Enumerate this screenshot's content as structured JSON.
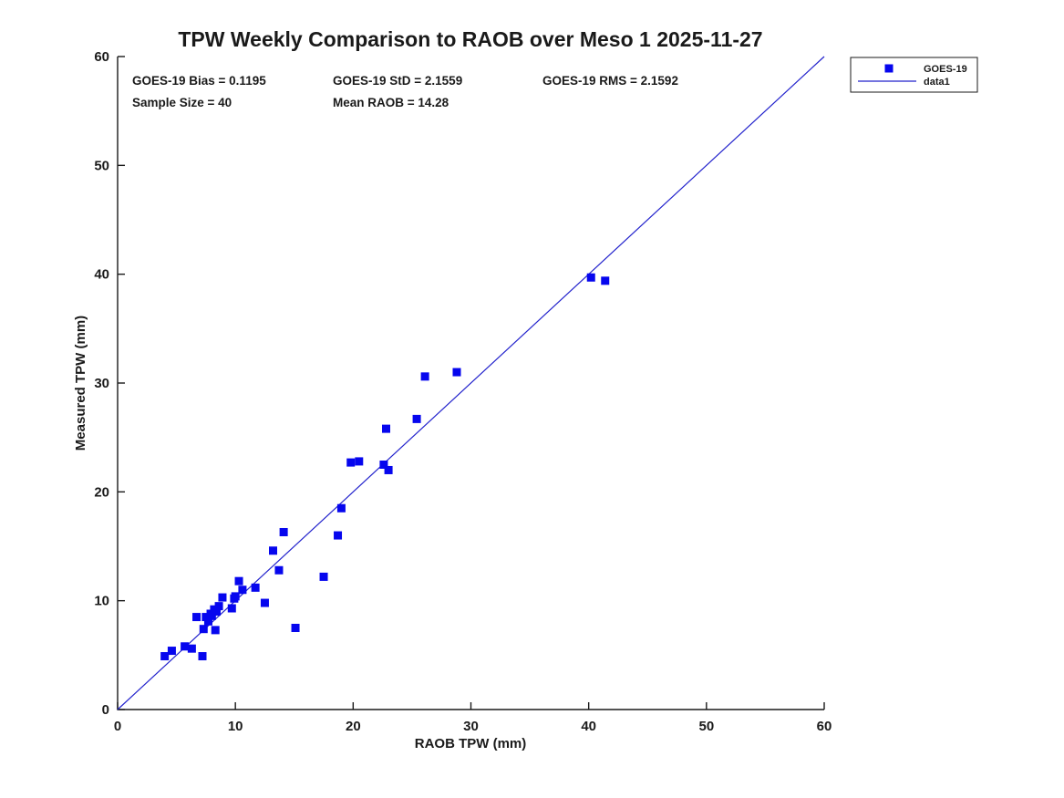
{
  "title": "TPW Weekly Comparison to RAOB over Meso 1 2025-11-27",
  "annotations": {
    "bias": "GOES-19 Bias = 0.1195",
    "std": "GOES-19 StD = 2.1559",
    "rms": "GOES-19 RMS = 2.1592",
    "sample_size": "Sample Size = 40",
    "mean_raob": "Mean RAOB = 14.28"
  },
  "legend": {
    "position": "top-right-outside",
    "items": [
      {
        "label": "GOES-19",
        "swatch": "square-marker"
      },
      {
        "label": "data1",
        "swatch": "line"
      }
    ]
  },
  "colors": {
    "marker": "#0606ee",
    "line": "#2222cc",
    "axis": "#1a1a1a",
    "background": "#ffffff"
  },
  "chart_data": {
    "type": "scatter",
    "title": "TPW Weekly Comparison to RAOB over Meso 1 2025-11-27",
    "xlabel": "RAOB TPW (mm)",
    "ylabel": "Measured TPW (mm)",
    "xlim": [
      0,
      60
    ],
    "ylim": [
      0,
      60
    ],
    "xticks": [
      0,
      10,
      20,
      30,
      40,
      50,
      60
    ],
    "yticks": [
      0,
      10,
      20,
      30,
      40,
      50,
      60
    ],
    "grid": false,
    "legend_position": "top-right-outside",
    "stats": {
      "bias": 0.1195,
      "std": 2.1559,
      "rms": 2.1592,
      "sample_size": 40,
      "mean_raob": 14.28
    },
    "series": [
      {
        "name": "GOES-19",
        "type": "scatter",
        "marker": "square",
        "marker_size": 9,
        "color": "#0606ee",
        "points": [
          [
            4.0,
            4.9
          ],
          [
            4.6,
            5.4
          ],
          [
            5.7,
            5.8
          ],
          [
            6.3,
            5.6
          ],
          [
            7.2,
            4.9
          ],
          [
            6.7,
            8.5
          ],
          [
            7.3,
            7.4
          ],
          [
            8.3,
            7.3
          ],
          [
            7.5,
            8.5
          ],
          [
            7.9,
            8.8
          ],
          [
            7.7,
            8.1
          ],
          [
            8.2,
            9.2
          ],
          [
            8.6,
            9.5
          ],
          [
            8.9,
            10.3
          ],
          [
            10.0,
            10.4
          ],
          [
            9.7,
            9.3
          ],
          [
            9.9,
            10.2
          ],
          [
            10.3,
            11.8
          ],
          [
            10.6,
            11.0
          ],
          [
            11.7,
            11.2
          ],
          [
            12.5,
            9.8
          ],
          [
            13.2,
            14.6
          ],
          [
            13.7,
            12.8
          ],
          [
            14.1,
            16.3
          ],
          [
            15.1,
            7.5
          ],
          [
            17.5,
            12.2
          ],
          [
            18.7,
            16.0
          ],
          [
            19.0,
            18.5
          ],
          [
            19.8,
            22.7
          ],
          [
            20.5,
            22.8
          ],
          [
            22.6,
            22.5
          ],
          [
            23.0,
            22.0
          ],
          [
            22.8,
            25.8
          ],
          [
            25.4,
            26.7
          ],
          [
            26.1,
            30.6
          ],
          [
            28.8,
            31.0
          ],
          [
            40.2,
            39.7
          ],
          [
            41.4,
            39.4
          ],
          [
            8.4,
            9.0
          ],
          [
            8.0,
            8.6
          ]
        ]
      },
      {
        "name": "data1",
        "type": "line",
        "color": "#2222cc",
        "line_width": 1.2,
        "points": [
          [
            0,
            0
          ],
          [
            60,
            60
          ]
        ]
      }
    ]
  }
}
